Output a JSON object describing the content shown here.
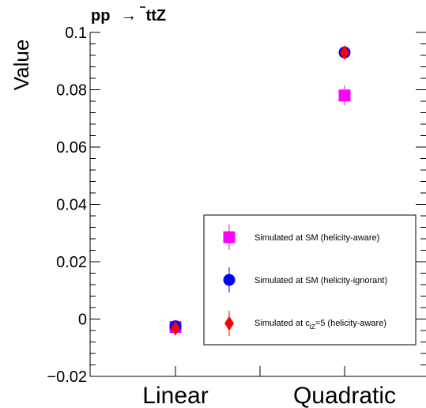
{
  "chart_data": {
    "type": "scatter",
    "title": "pp → tt̄Z",
    "title_parts": {
      "prefix": "pp",
      "arrow": "→",
      "t1": "t",
      "tbar": "t",
      "z": "Z"
    },
    "xlabel": "",
    "ylabel": "Value",
    "categories": [
      "Linear",
      "Quadratic"
    ],
    "ylim": [
      -0.02,
      0.1
    ],
    "y_ticks": [
      -0.02,
      0,
      0.02,
      0.04,
      0.06,
      0.08,
      0.1
    ],
    "y_tick_labels": [
      "−0.02",
      "0",
      "0.02",
      "0.04",
      "0.06",
      "0.08",
      "0.1"
    ],
    "grid": false,
    "legend_position": "lower-right",
    "series": [
      {
        "name": "Simulated at SM (helicity-aware)",
        "marker": "square",
        "color": "#ff00ff",
        "values": [
          -0.0028,
          0.078
        ],
        "errors": [
          0.0012,
          0.0035
        ]
      },
      {
        "name": "Simulated at SM (helicity-ignorant)",
        "marker": "circle",
        "color": "#0000ff",
        "values": [
          -0.0025,
          0.093
        ],
        "errors": [
          0.001,
          0.0012
        ]
      },
      {
        "name": "Simulated at c_tZ=5 (helicity-aware)",
        "name_parts": {
          "before": "Simulated at c",
          "sub": "tZ",
          "after": "=5 (helicity-aware)"
        },
        "marker": "diamond",
        "color": "#ff0000",
        "values": [
          -0.0032,
          0.093
        ],
        "errors": [
          0.0012,
          0.0012
        ]
      }
    ]
  }
}
